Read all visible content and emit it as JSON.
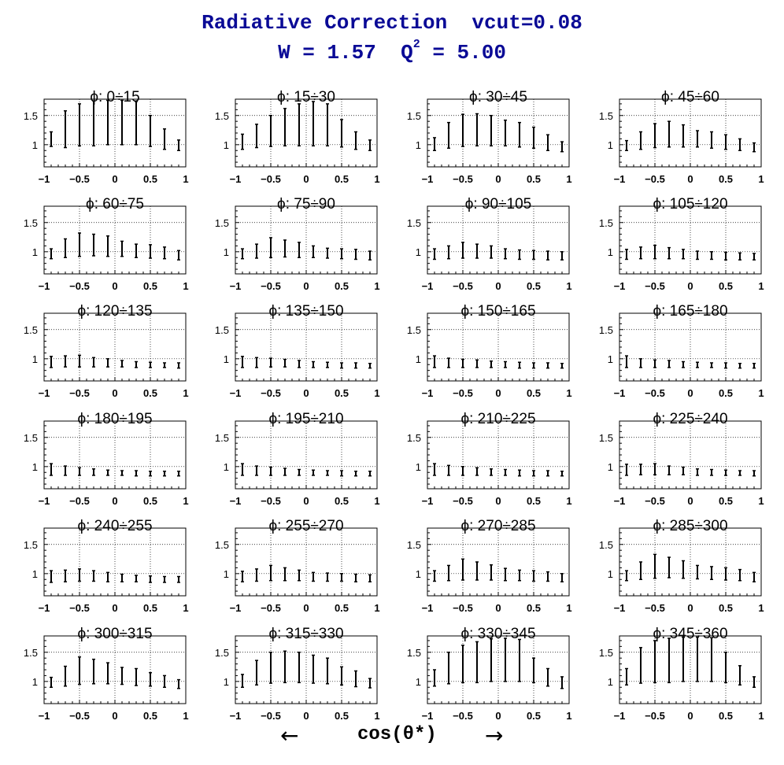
{
  "header": {
    "title": "Radiative Correction  vcut=0.08",
    "subtitle_prefix": "W = 1.57  Q",
    "subtitle_sup": "2",
    "subtitle_suffix": " = 5.00"
  },
  "footer": {
    "arrow_left": "←",
    "xlabel": "cos(θ*)",
    "arrow_right": "→"
  },
  "chart_data": {
    "type": "scatter",
    "error_bars": true,
    "grid": true,
    "layout": "6 rows x 4 columns of panels",
    "xlim": [
      -1,
      1
    ],
    "ylim": [
      0.62,
      1.78
    ],
    "xticks": [
      -1,
      -0.5,
      0,
      0.5,
      1
    ],
    "xtick_labels": [
      "−1",
      "−0.5",
      "0",
      "0.5",
      "1"
    ],
    "yticks": [
      1,
      1.5
    ],
    "ytick_labels": [
      "1",
      "1.5"
    ],
    "x": [
      -0.9,
      -0.7,
      -0.5,
      -0.3,
      -0.1,
      0.1,
      0.3,
      0.5,
      0.7,
      0.9
    ],
    "panels": [
      {
        "title": "ϕ:  0÷15",
        "low": [
          0.97,
          0.95,
          0.98,
          0.98,
          1.0,
          1.0,
          1.0,
          0.97,
          0.92,
          0.9
        ],
        "high": [
          1.22,
          1.58,
          1.7,
          1.75,
          1.76,
          1.76,
          1.74,
          1.5,
          1.27,
          1.08
        ]
      },
      {
        "title": "ϕ:  15÷30",
        "low": [
          0.92,
          0.95,
          0.97,
          0.98,
          0.98,
          0.98,
          0.98,
          0.96,
          0.92,
          0.9
        ],
        "high": [
          1.18,
          1.35,
          1.5,
          1.62,
          1.7,
          1.74,
          1.7,
          1.43,
          1.22,
          1.08
        ]
      },
      {
        "title": "ϕ:  30÷45",
        "low": [
          0.9,
          0.94,
          0.97,
          0.98,
          0.98,
          0.98,
          0.96,
          0.94,
          0.9,
          0.88
        ],
        "high": [
          1.12,
          1.38,
          1.52,
          1.53,
          1.5,
          1.42,
          1.38,
          1.3,
          1.17,
          1.05
        ]
      },
      {
        "title": "ϕ:  45÷60",
        "low": [
          0.9,
          0.92,
          0.95,
          0.96,
          0.96,
          0.96,
          0.94,
          0.92,
          0.9,
          0.88
        ],
        "high": [
          1.07,
          1.22,
          1.36,
          1.4,
          1.34,
          1.24,
          1.22,
          1.17,
          1.1,
          1.03
        ]
      },
      {
        "title": "ϕ:  60÷75",
        "low": [
          0.88,
          0.9,
          0.92,
          0.93,
          0.92,
          0.92,
          0.9,
          0.89,
          0.88,
          0.86
        ],
        "high": [
          1.05,
          1.22,
          1.32,
          1.3,
          1.27,
          1.18,
          1.13,
          1.12,
          1.08,
          1.02
        ]
      },
      {
        "title": "ϕ:  75÷90",
        "low": [
          0.88,
          0.89,
          0.9,
          0.91,
          0.9,
          0.9,
          0.89,
          0.88,
          0.87,
          0.86
        ],
        "high": [
          1.05,
          1.13,
          1.24,
          1.2,
          1.16,
          1.1,
          1.06,
          1.05,
          1.04,
          1.01
        ]
      },
      {
        "title": "ϕ:  90÷105",
        "low": [
          0.87,
          0.88,
          0.89,
          0.89,
          0.89,
          0.88,
          0.87,
          0.87,
          0.86,
          0.86
        ],
        "high": [
          1.05,
          1.1,
          1.16,
          1.13,
          1.1,
          1.05,
          1.03,
          1.02,
          1.01,
          1.0
        ]
      },
      {
        "title": "ϕ: 105÷120",
        "low": [
          0.87,
          0.88,
          0.88,
          0.88,
          0.88,
          0.87,
          0.87,
          0.86,
          0.86,
          0.86
        ],
        "high": [
          1.04,
          1.08,
          1.11,
          1.07,
          1.04,
          1.01,
          1.0,
          0.99,
          0.98,
          0.97
        ]
      },
      {
        "title": "ϕ: 120÷135",
        "low": [
          0.85,
          0.86,
          0.86,
          0.86,
          0.86,
          0.86,
          0.85,
          0.85,
          0.85,
          0.84
        ],
        "high": [
          1.04,
          1.05,
          1.06,
          1.02,
          1.0,
          0.97,
          0.95,
          0.94,
          0.93,
          0.93
        ]
      },
      {
        "title": "ϕ: 135÷150",
        "low": [
          0.85,
          0.85,
          0.86,
          0.86,
          0.85,
          0.85,
          0.85,
          0.84,
          0.84,
          0.84
        ],
        "high": [
          1.04,
          1.02,
          1.01,
          0.99,
          0.97,
          0.95,
          0.94,
          0.93,
          0.93,
          0.92
        ]
      },
      {
        "title": "ϕ: 150÷165",
        "low": [
          0.85,
          0.85,
          0.85,
          0.85,
          0.85,
          0.85,
          0.84,
          0.84,
          0.84,
          0.84
        ],
        "high": [
          1.05,
          1.01,
          0.99,
          0.98,
          0.96,
          0.95,
          0.94,
          0.93,
          0.93,
          0.92
        ]
      },
      {
        "title": "ϕ: 165÷180",
        "low": [
          0.85,
          0.85,
          0.85,
          0.85,
          0.85,
          0.85,
          0.85,
          0.84,
          0.84,
          0.84
        ],
        "high": [
          1.05,
          1.0,
          0.98,
          0.97,
          0.95,
          0.94,
          0.93,
          0.93,
          0.92,
          0.92
        ]
      },
      {
        "title": "ϕ: 180÷195",
        "low": [
          0.85,
          0.85,
          0.85,
          0.85,
          0.85,
          0.85,
          0.84,
          0.84,
          0.84,
          0.84
        ],
        "high": [
          1.05,
          1.01,
          0.98,
          0.96,
          0.94,
          0.93,
          0.93,
          0.92,
          0.92,
          0.92
        ]
      },
      {
        "title": "ϕ: 195÷210",
        "low": [
          0.85,
          0.85,
          0.85,
          0.85,
          0.85,
          0.85,
          0.85,
          0.84,
          0.84,
          0.84
        ],
        "high": [
          1.05,
          1.01,
          0.99,
          0.97,
          0.95,
          0.94,
          0.93,
          0.93,
          0.92,
          0.92
        ]
      },
      {
        "title": "ϕ: 210÷225",
        "low": [
          0.85,
          0.85,
          0.85,
          0.85,
          0.85,
          0.85,
          0.84,
          0.84,
          0.84,
          0.84
        ],
        "high": [
          1.05,
          1.02,
          1.0,
          0.98,
          0.96,
          0.95,
          0.94,
          0.93,
          0.93,
          0.92
        ]
      },
      {
        "title": "ϕ: 225÷240",
        "low": [
          0.85,
          0.86,
          0.86,
          0.86,
          0.86,
          0.85,
          0.85,
          0.85,
          0.85,
          0.84
        ],
        "high": [
          1.04,
          1.04,
          1.05,
          1.01,
          0.99,
          0.96,
          0.95,
          0.94,
          0.93,
          0.93
        ]
      },
      {
        "title": "ϕ: 240÷255",
        "low": [
          0.85,
          0.86,
          0.87,
          0.87,
          0.86,
          0.86,
          0.86,
          0.85,
          0.85,
          0.85
        ],
        "high": [
          1.05,
          1.06,
          1.08,
          1.05,
          1.02,
          0.99,
          0.97,
          0.96,
          0.95,
          0.95
        ]
      },
      {
        "title": "ϕ: 255÷270",
        "low": [
          0.86,
          0.87,
          0.88,
          0.88,
          0.88,
          0.87,
          0.87,
          0.87,
          0.86,
          0.86
        ],
        "high": [
          1.04,
          1.08,
          1.14,
          1.1,
          1.06,
          1.02,
          1.01,
          1.0,
          0.99,
          0.98
        ]
      },
      {
        "title": "ϕ: 270÷285",
        "low": [
          0.87,
          0.88,
          0.89,
          0.89,
          0.89,
          0.88,
          0.88,
          0.87,
          0.87,
          0.86
        ],
        "high": [
          1.05,
          1.14,
          1.25,
          1.2,
          1.15,
          1.09,
          1.06,
          1.05,
          1.03,
          1.0
        ]
      },
      {
        "title": "ϕ: 285÷300",
        "low": [
          0.88,
          0.9,
          0.92,
          0.93,
          0.92,
          0.91,
          0.9,
          0.89,
          0.88,
          0.86
        ],
        "high": [
          1.05,
          1.2,
          1.33,
          1.28,
          1.22,
          1.14,
          1.12,
          1.1,
          1.07,
          1.02
        ]
      },
      {
        "title": "ϕ: 300÷315",
        "low": [
          0.9,
          0.92,
          0.95,
          0.96,
          0.96,
          0.95,
          0.93,
          0.92,
          0.9,
          0.88
        ],
        "high": [
          1.07,
          1.26,
          1.42,
          1.38,
          1.32,
          1.24,
          1.22,
          1.15,
          1.1,
          1.03
        ]
      },
      {
        "title": "ϕ: 315÷330",
        "low": [
          0.9,
          0.94,
          0.97,
          0.98,
          0.98,
          0.97,
          0.96,
          0.94,
          0.91,
          0.89
        ],
        "high": [
          1.12,
          1.36,
          1.5,
          1.52,
          1.5,
          1.45,
          1.4,
          1.25,
          1.18,
          1.05
        ]
      },
      {
        "title": "ϕ: 330÷345",
        "low": [
          0.92,
          0.96,
          0.98,
          0.98,
          1.0,
          1.0,
          1.0,
          0.98,
          0.92,
          0.88
        ],
        "high": [
          1.2,
          1.5,
          1.62,
          1.68,
          1.73,
          1.74,
          1.72,
          1.4,
          1.22,
          1.08
        ]
      },
      {
        "title": "ϕ: 345÷360",
        "low": [
          0.94,
          0.97,
          0.98,
          0.98,
          1.0,
          1.0,
          1.0,
          0.98,
          0.94,
          0.9
        ],
        "high": [
          1.22,
          1.58,
          1.7,
          1.74,
          1.76,
          1.76,
          1.75,
          1.5,
          1.27,
          1.08
        ]
      }
    ]
  }
}
